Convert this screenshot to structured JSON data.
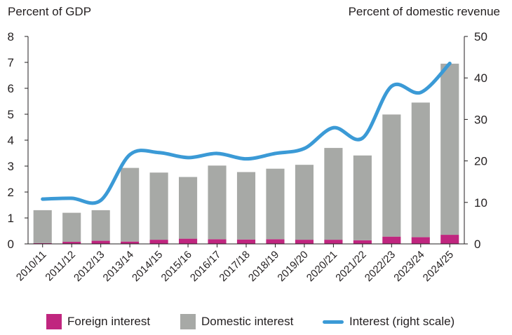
{
  "chart_data": {
    "type": "bar",
    "stacked": true,
    "left_axis_title": "Percent of GDP",
    "right_axis_title": "Percent of domestic revenue",
    "categories": [
      "2010/11",
      "2011/12",
      "2012/13",
      "2013/14",
      "2014/15",
      "2015/16",
      "2016/17",
      "2017/18",
      "2018/19",
      "2019/20",
      "2020/21",
      "2021/22",
      "2022/23",
      "2023/24",
      "2024/25"
    ],
    "series": [
      {
        "name": "Foreign interest",
        "axis": "left",
        "kind": "bar",
        "color": "#c0267f",
        "values": [
          0.03,
          0.08,
          0.12,
          0.09,
          0.16,
          0.2,
          0.18,
          0.17,
          0.18,
          0.16,
          0.16,
          0.14,
          0.28,
          0.26,
          0.35
        ]
      },
      {
        "name": "Domestic interest",
        "axis": "left",
        "kind": "bar",
        "color": "#a7a9a6",
        "values": [
          1.27,
          1.12,
          1.18,
          2.84,
          2.59,
          2.38,
          2.84,
          2.6,
          2.72,
          2.89,
          3.54,
          3.27,
          4.71,
          5.19,
          6.6
        ]
      },
      {
        "name": "Interest (right scale)",
        "axis": "right",
        "kind": "line",
        "color": "#3b9ad6",
        "values": [
          10.8,
          11.0,
          10.5,
          21.5,
          22.0,
          20.8,
          21.8,
          20.5,
          21.8,
          23.0,
          28.0,
          25.5,
          38.0,
          36.5,
          43.5
        ]
      }
    ],
    "left_ylim": [
      0,
      8
    ],
    "left_ticks": [
      0,
      1,
      2,
      3,
      4,
      5,
      6,
      7,
      8
    ],
    "right_ylim": [
      0,
      50
    ],
    "right_ticks": [
      0,
      10,
      20,
      30,
      40,
      50
    ],
    "legend_position": "bottom",
    "grid": false
  }
}
